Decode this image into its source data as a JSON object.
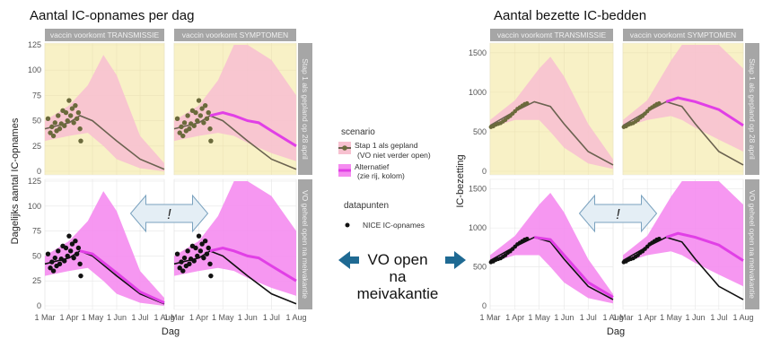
{
  "left_title": "Aantal IC-opnames per dag",
  "right_title": "Aantal bezette IC-bedden",
  "strip_cols": [
    "vaccin voorkomt TRANSMISSIE",
    "vaccin voorkomt SYMPTOMEN"
  ],
  "strip_rows_left": [
    "Stap 1 als gepland op 28 april",
    "VO geheel open na meivakantie"
  ],
  "strip_rows_right": [
    "Stap 1 als gepland op 28 april",
    "VO geheel open na meivakantie"
  ],
  "left_ylabel": "Dagelijks aantal IC-opnames",
  "right_ylabel": "IC-bezetting",
  "xlabel": "Dag",
  "x_ticks": [
    "1 Mar",
    "1 Apr",
    "1 May",
    "1 Jun",
    "1 Jul",
    "1 Aug"
  ],
  "left_y_ticks": [
    "0",
    "25",
    "50",
    "75",
    "100",
    "125"
  ],
  "right_y_ticks": [
    "0",
    "500",
    "1000",
    "1500"
  ],
  "legend": {
    "scenario_title": "scenario",
    "scenario_items": [
      "Stap 1 als gepland\n(VO niet verder open)",
      "Alternatief\n(zie rij, kolom)"
    ],
    "points_title": "datapunten",
    "points_item": "NICE IC-opnames"
  },
  "center_text": [
    "VO open",
    "na",
    "meivakantie"
  ],
  "exclamation": "!",
  "colors": {
    "panel_top": "#f8f1c6",
    "panel_bottom": "#ffffff",
    "ribbon_top": "#f7c1d0",
    "ribbon_bottom": "#f58cf0",
    "line_planned": "#6b6250",
    "line_planned_bottom": "#111111",
    "line_alt": "#e13fe6",
    "points_top": "#6b6a3c",
    "points_bottom": "#111111",
    "arrow": "#1f6a93",
    "strip": "#a6a6a6"
  },
  "chart_data": {
    "type": "line",
    "x_unit": "date (2021)",
    "x_range": [
      "2021-03-01",
      "2021-08-01"
    ],
    "panels_ic_opnames": {
      "ylim": [
        0,
        125
      ],
      "top_left": {
        "ribbon": {
          "x": [
            "2021-03-01",
            "2021-04-01",
            "2021-04-25",
            "2021-05-15",
            "2021-06-01",
            "2021-07-01",
            "2021-08-01"
          ],
          "low": [
            30,
            35,
            38,
            25,
            12,
            3,
            0
          ],
          "high": [
            50,
            65,
            85,
            115,
            95,
            35,
            8
          ]
        },
        "planned": {
          "x": [
            "2021-03-01",
            "2021-04-01",
            "2021-04-15",
            "2021-05-01",
            "2021-06-01",
            "2021-07-01",
            "2021-08-01"
          ],
          "y": [
            42,
            48,
            55,
            50,
            30,
            12,
            2
          ]
        }
      },
      "top_right": {
        "ribbon": {
          "x": [
            "2021-03-01",
            "2021-04-01",
            "2021-04-25",
            "2021-05-15",
            "2021-06-01",
            "2021-07-01",
            "2021-08-01"
          ],
          "low": [
            30,
            35,
            38,
            35,
            28,
            18,
            10
          ],
          "high": [
            50,
            65,
            90,
            125,
            125,
            110,
            75
          ]
        },
        "planned": {
          "x": [
            "2021-03-01",
            "2021-04-01",
            "2021-04-15",
            "2021-05-01",
            "2021-06-01",
            "2021-07-01",
            "2021-08-01"
          ],
          "y": [
            42,
            48,
            55,
            50,
            30,
            12,
            2
          ]
        },
        "alternative": {
          "x": [
            "2021-04-15",
            "2021-05-01",
            "2021-05-15",
            "2021-06-01",
            "2021-06-15",
            "2021-07-01",
            "2021-08-01"
          ],
          "y": [
            55,
            58,
            55,
            50,
            48,
            40,
            25
          ]
        }
      },
      "bottom_left": {
        "ribbon": {
          "x": [
            "2021-03-01",
            "2021-04-01",
            "2021-04-25",
            "2021-05-15",
            "2021-06-01",
            "2021-07-01",
            "2021-08-01"
          ],
          "low": [
            30,
            35,
            38,
            25,
            12,
            3,
            0
          ],
          "high": [
            50,
            65,
            85,
            115,
            95,
            35,
            8
          ]
        },
        "planned": {
          "x": [
            "2021-03-01",
            "2021-04-01",
            "2021-04-15",
            "2021-05-01",
            "2021-06-01",
            "2021-07-01",
            "2021-08-01"
          ],
          "y": [
            42,
            48,
            55,
            50,
            30,
            12,
            2
          ]
        },
        "alternative": {
          "x": [
            "2021-04-15",
            "2021-05-01",
            "2021-06-01",
            "2021-07-01",
            "2021-08-01"
          ],
          "y": [
            55,
            52,
            33,
            14,
            3
          ]
        }
      },
      "bottom_right": {
        "ribbon": {
          "x": [
            "2021-03-01",
            "2021-04-01",
            "2021-04-25",
            "2021-05-15",
            "2021-06-01",
            "2021-07-01",
            "2021-08-01"
          ],
          "low": [
            30,
            35,
            38,
            35,
            28,
            18,
            10
          ],
          "high": [
            50,
            65,
            90,
            125,
            125,
            110,
            75
          ]
        },
        "planned": {
          "x": [
            "2021-03-01",
            "2021-04-01",
            "2021-04-15",
            "2021-05-01",
            "2021-06-01",
            "2021-07-01",
            "2021-08-01"
          ],
          "y": [
            42,
            48,
            55,
            50,
            30,
            12,
            2
          ]
        },
        "alternative": {
          "x": [
            "2021-04-15",
            "2021-05-01",
            "2021-05-15",
            "2021-06-01",
            "2021-06-15",
            "2021-07-01",
            "2021-08-01"
          ],
          "y": [
            55,
            58,
            55,
            50,
            48,
            40,
            25
          ]
        }
      },
      "nice_points": {
        "x": [
          "2021-03-05",
          "2021-03-08",
          "2021-03-10",
          "2021-03-12",
          "2021-03-14",
          "2021-03-16",
          "2021-03-18",
          "2021-03-20",
          "2021-03-22",
          "2021-03-24",
          "2021-03-26",
          "2021-03-28",
          "2021-03-30",
          "2021-04-01",
          "2021-04-03",
          "2021-04-05",
          "2021-04-07",
          "2021-04-09",
          "2021-04-11",
          "2021-04-13",
          "2021-04-15",
          "2021-04-16"
        ],
        "y": [
          52,
          38,
          44,
          35,
          48,
          40,
          55,
          42,
          47,
          60,
          45,
          58,
          50,
          70,
          55,
          62,
          48,
          65,
          52,
          58,
          42,
          30
        ]
      }
    },
    "panels_ic_bezetting": {
      "ylim": [
        0,
        1600
      ],
      "top_left": {
        "ribbon": {
          "x": [
            "2021-03-01",
            "2021-04-01",
            "2021-05-01",
            "2021-05-15",
            "2021-06-01",
            "2021-07-01",
            "2021-08-01"
          ],
          "low": [
            550,
            650,
            650,
            500,
            300,
            100,
            30
          ],
          "high": [
            650,
            900,
            1300,
            1450,
            1200,
            600,
            150
          ]
        },
        "planned": {
          "x": [
            "2021-03-01",
            "2021-04-01",
            "2021-04-25",
            "2021-05-15",
            "2021-06-01",
            "2021-07-01",
            "2021-08-01"
          ],
          "y": [
            580,
            760,
            880,
            820,
            600,
            250,
            80
          ]
        }
      },
      "top_right": {
        "ribbon": {
          "x": [
            "2021-03-01",
            "2021-04-01",
            "2021-05-01",
            "2021-05-15",
            "2021-06-01",
            "2021-07-01",
            "2021-08-01"
          ],
          "low": [
            550,
            650,
            700,
            650,
            550,
            400,
            250
          ],
          "high": [
            650,
            900,
            1400,
            1600,
            1600,
            1600,
            1300
          ]
        },
        "planned": {
          "x": [
            "2021-03-01",
            "2021-04-01",
            "2021-04-25",
            "2021-05-15",
            "2021-06-01",
            "2021-07-01",
            "2021-08-01"
          ],
          "y": [
            580,
            760,
            880,
            820,
            600,
            250,
            80
          ]
        },
        "alternative": {
          "x": [
            "2021-04-25",
            "2021-05-10",
            "2021-06-01",
            "2021-07-01",
            "2021-08-01"
          ],
          "y": [
            880,
            930,
            880,
            780,
            580
          ]
        }
      },
      "bottom_left": {
        "ribbon": {
          "x": [
            "2021-03-01",
            "2021-04-01",
            "2021-05-01",
            "2021-05-15",
            "2021-06-01",
            "2021-07-01",
            "2021-08-01"
          ],
          "low": [
            550,
            650,
            650,
            500,
            300,
            100,
            30
          ],
          "high": [
            650,
            900,
            1300,
            1450,
            1200,
            600,
            150
          ]
        },
        "planned": {
          "x": [
            "2021-03-01",
            "2021-04-01",
            "2021-04-25",
            "2021-05-15",
            "2021-06-01",
            "2021-07-01",
            "2021-08-01"
          ],
          "y": [
            580,
            760,
            880,
            820,
            600,
            250,
            80
          ]
        },
        "alternative": {
          "x": [
            "2021-04-25",
            "2021-05-15",
            "2021-06-01",
            "2021-07-01",
            "2021-08-01"
          ],
          "y": [
            880,
            850,
            650,
            300,
            110
          ]
        }
      },
      "bottom_right": {
        "ribbon": {
          "x": [
            "2021-03-01",
            "2021-04-01",
            "2021-05-01",
            "2021-05-15",
            "2021-06-01",
            "2021-07-01",
            "2021-08-01"
          ],
          "low": [
            550,
            650,
            700,
            650,
            550,
            400,
            250
          ],
          "high": [
            650,
            900,
            1400,
            1600,
            1600,
            1600,
            1300
          ]
        },
        "planned": {
          "x": [
            "2021-03-01",
            "2021-04-01",
            "2021-04-25",
            "2021-05-15",
            "2021-06-01",
            "2021-07-01",
            "2021-08-01"
          ],
          "y": [
            580,
            760,
            880,
            820,
            600,
            250,
            80
          ]
        },
        "alternative": {
          "x": [
            "2021-04-25",
            "2021-05-10",
            "2021-06-01",
            "2021-07-01",
            "2021-08-01"
          ],
          "y": [
            880,
            930,
            880,
            780,
            580
          ]
        }
      },
      "nice_points": {
        "x": [
          "2021-03-02",
          "2021-03-05",
          "2021-03-08",
          "2021-03-11",
          "2021-03-14",
          "2021-03-17",
          "2021-03-20",
          "2021-03-23",
          "2021-03-26",
          "2021-03-29",
          "2021-04-01",
          "2021-04-04",
          "2021-04-07",
          "2021-04-10",
          "2021-04-13",
          "2021-04-16"
        ],
        "y": [
          560,
          570,
          590,
          600,
          610,
          630,
          650,
          680,
          700,
          730,
          760,
          790,
          810,
          830,
          850,
          860
        ]
      }
    }
  }
}
